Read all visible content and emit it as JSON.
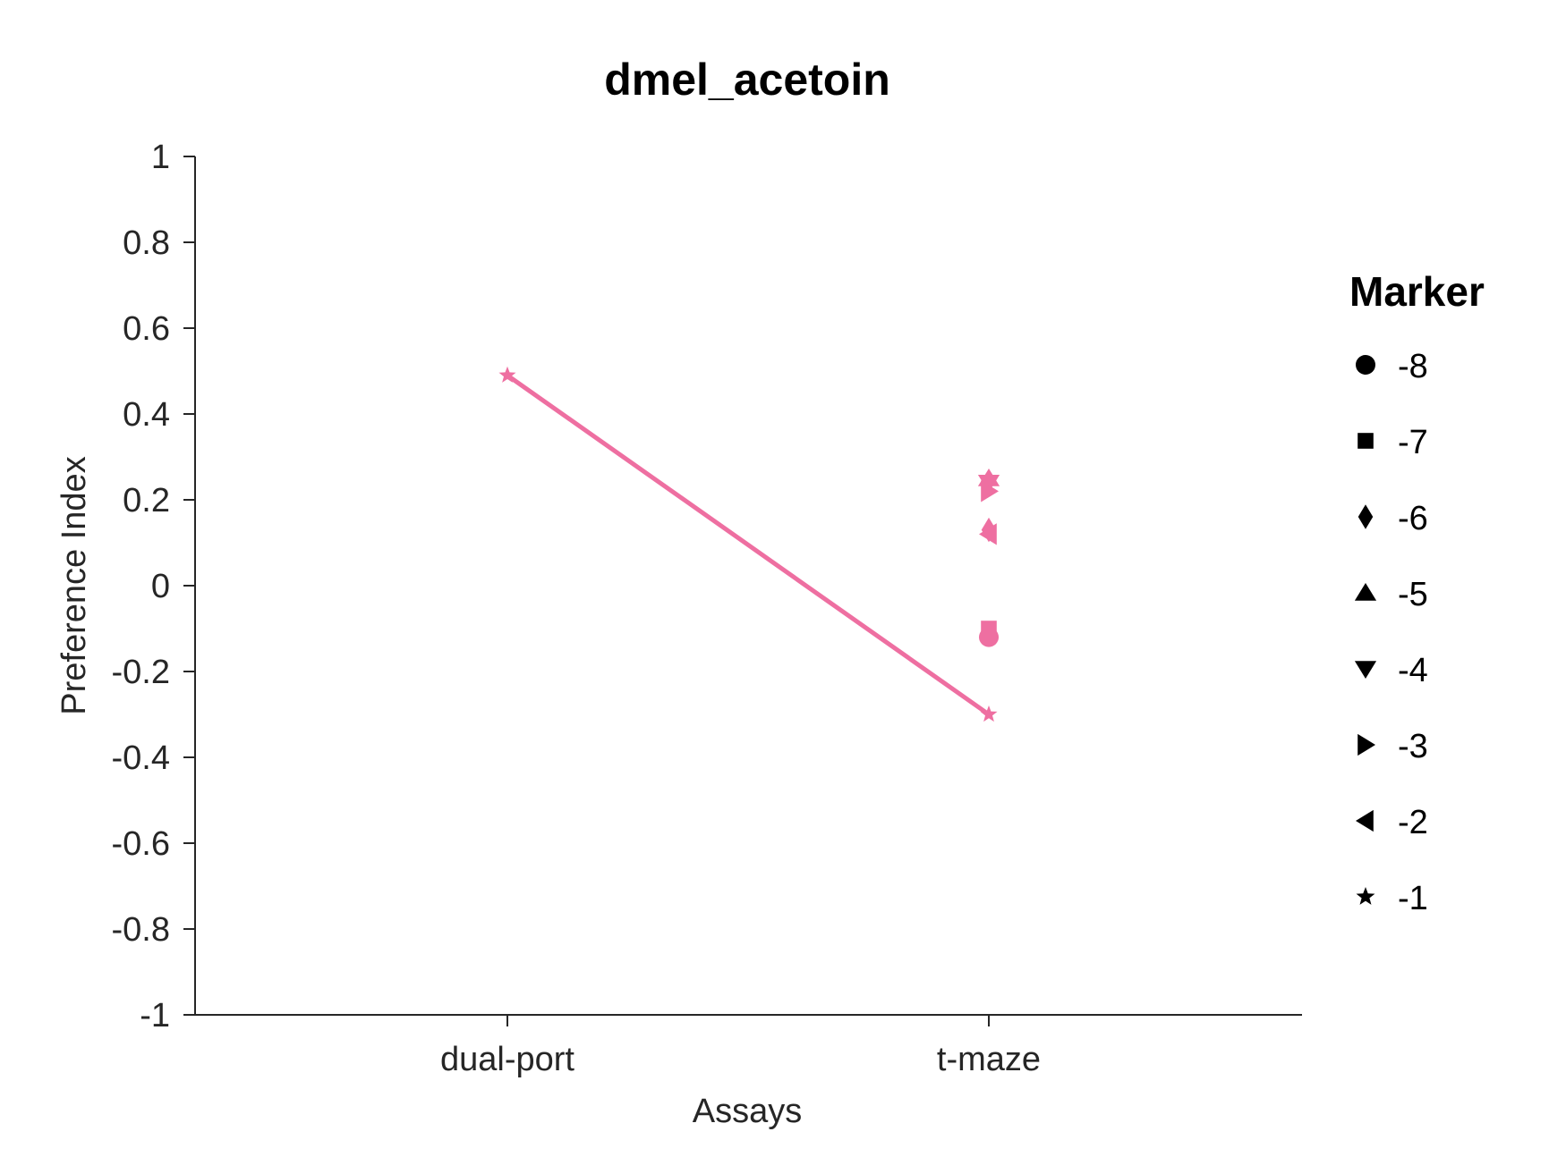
{
  "chart_data": {
    "type": "scatter",
    "title": "dmel_acetoin",
    "xlabel": "Assays",
    "ylabel": "Preference Index",
    "categories": [
      "dual-port",
      "t-maze"
    ],
    "ylim": [
      -1,
      1
    ],
    "yticks": [
      "1",
      "0.8",
      "0.6",
      "0.4",
      "0.2",
      "0",
      "-0.2",
      "-0.4",
      "-0.6",
      "-0.8",
      "-1"
    ],
    "ytick_values": [
      1,
      0.8,
      0.6,
      0.4,
      0.2,
      0,
      -0.2,
      -0.4,
      -0.6,
      -0.8,
      -1
    ],
    "color": "#ee6fa1",
    "grid": false,
    "legend_position": "right",
    "legend": {
      "title": "Marker",
      "entries": [
        {
          "label": "-8",
          "marker": "circle"
        },
        {
          "label": "-7",
          "marker": "square"
        },
        {
          "label": "-6",
          "marker": "diamond"
        },
        {
          "label": "-5",
          "marker": "triangle-up"
        },
        {
          "label": "-4",
          "marker": "triangle-down"
        },
        {
          "label": "-3",
          "marker": "triangle-right"
        },
        {
          "label": "-2",
          "marker": "triangle-left"
        },
        {
          "label": "-1",
          "marker": "star"
        }
      ]
    },
    "series": [
      {
        "marker": "star",
        "line": true,
        "points": [
          {
            "x": "dual-port",
            "y": 0.49
          },
          {
            "x": "t-maze",
            "y": -0.3
          }
        ]
      },
      {
        "marker": "circle",
        "line": false,
        "points": [
          {
            "x": "t-maze",
            "y": -0.12
          }
        ]
      },
      {
        "marker": "square",
        "line": false,
        "points": [
          {
            "x": "t-maze",
            "y": -0.1
          }
        ]
      },
      {
        "marker": "diamond",
        "line": false,
        "points": [
          {
            "x": "t-maze",
            "y": 0.13
          }
        ]
      },
      {
        "marker": "triangle-up",
        "line": false,
        "points": [
          {
            "x": "t-maze",
            "y": 0.25
          }
        ]
      },
      {
        "marker": "triangle-down",
        "line": false,
        "points": [
          {
            "x": "t-maze",
            "y": 0.24
          }
        ]
      },
      {
        "marker": "triangle-right",
        "line": false,
        "points": [
          {
            "x": "t-maze",
            "y": 0.22
          }
        ]
      },
      {
        "marker": "triangle-left",
        "line": false,
        "points": [
          {
            "x": "t-maze",
            "y": 0.12
          }
        ]
      }
    ]
  }
}
